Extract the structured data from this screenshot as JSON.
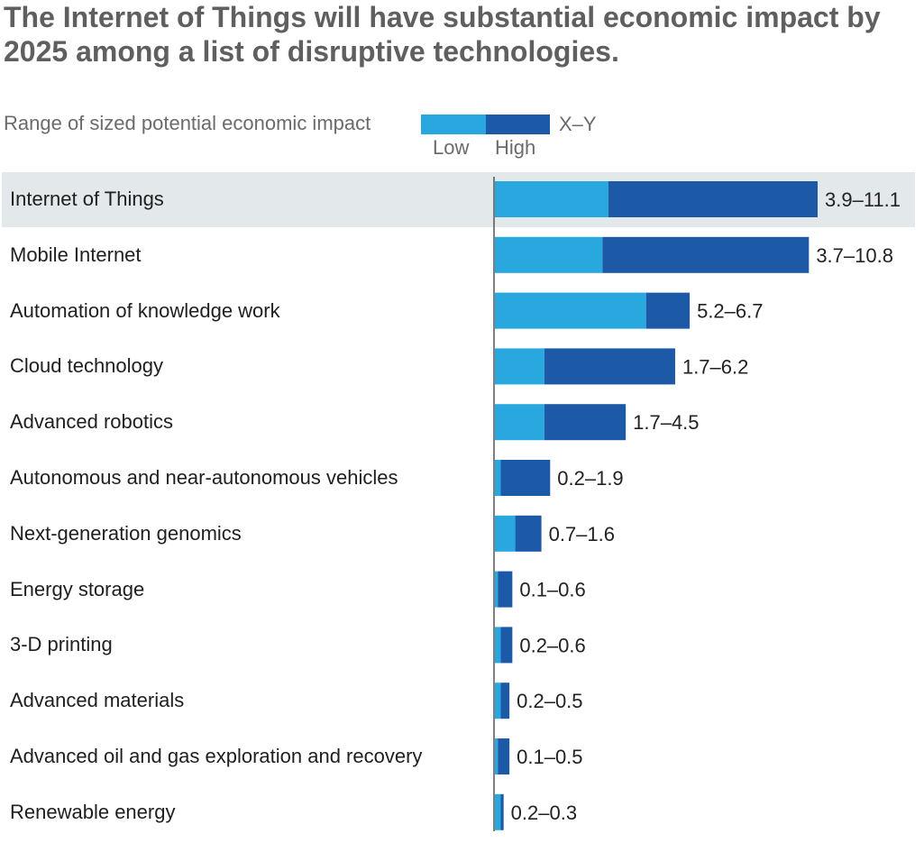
{
  "title": "The Internet of Things will have substantial economic impact by 2025 among a list of disruptive technologies.",
  "legend": {
    "label": "Range of sized potential economic impact",
    "low_label": "Low",
    "high_label": "High",
    "range_label": "X–Y"
  },
  "colors": {
    "low": "#29a8e0",
    "high": "#1c5aa8",
    "highlight": "#e3e8ea",
    "axis": "#555555"
  },
  "chart_data": {
    "type": "bar",
    "orientation": "horizontal",
    "stacked_range": true,
    "title": "The Internet of Things will have substantial economic impact by 2025 among a list of disruptive technologies.",
    "xlabel": "",
    "ylabel": "",
    "xlim": [
      0,
      11.1
    ],
    "grid": false,
    "legend_position": "top",
    "highlighted_category": "Internet of Things",
    "categories": [
      "Internet of Things",
      "Mobile Internet",
      "Automation of knowledge work",
      "Cloud technology",
      "Advanced robotics",
      "Autonomous and near-autonomous vehicles",
      "Next-generation genomics",
      "Energy storage",
      "3-D printing",
      "Advanced materials",
      "Advanced oil and gas exploration and recovery",
      "Renewable energy"
    ],
    "series": [
      {
        "name": "Low",
        "values": [
          3.9,
          3.7,
          5.2,
          1.7,
          1.7,
          0.2,
          0.7,
          0.1,
          0.2,
          0.2,
          0.1,
          0.2
        ]
      },
      {
        "name": "High",
        "values": [
          11.1,
          10.8,
          6.7,
          6.2,
          4.5,
          1.9,
          1.6,
          0.6,
          0.6,
          0.5,
          0.5,
          0.3
        ]
      }
    ],
    "data_labels": [
      "3.9–11.1",
      "3.7–10.8",
      "5.2–6.7",
      "1.7–6.2",
      "1.7–4.5",
      "0.2–1.9",
      "0.7–1.6",
      "0.1–0.6",
      "0.2–0.6",
      "0.2–0.5",
      "0.1–0.5",
      "0.2–0.3"
    ]
  }
}
